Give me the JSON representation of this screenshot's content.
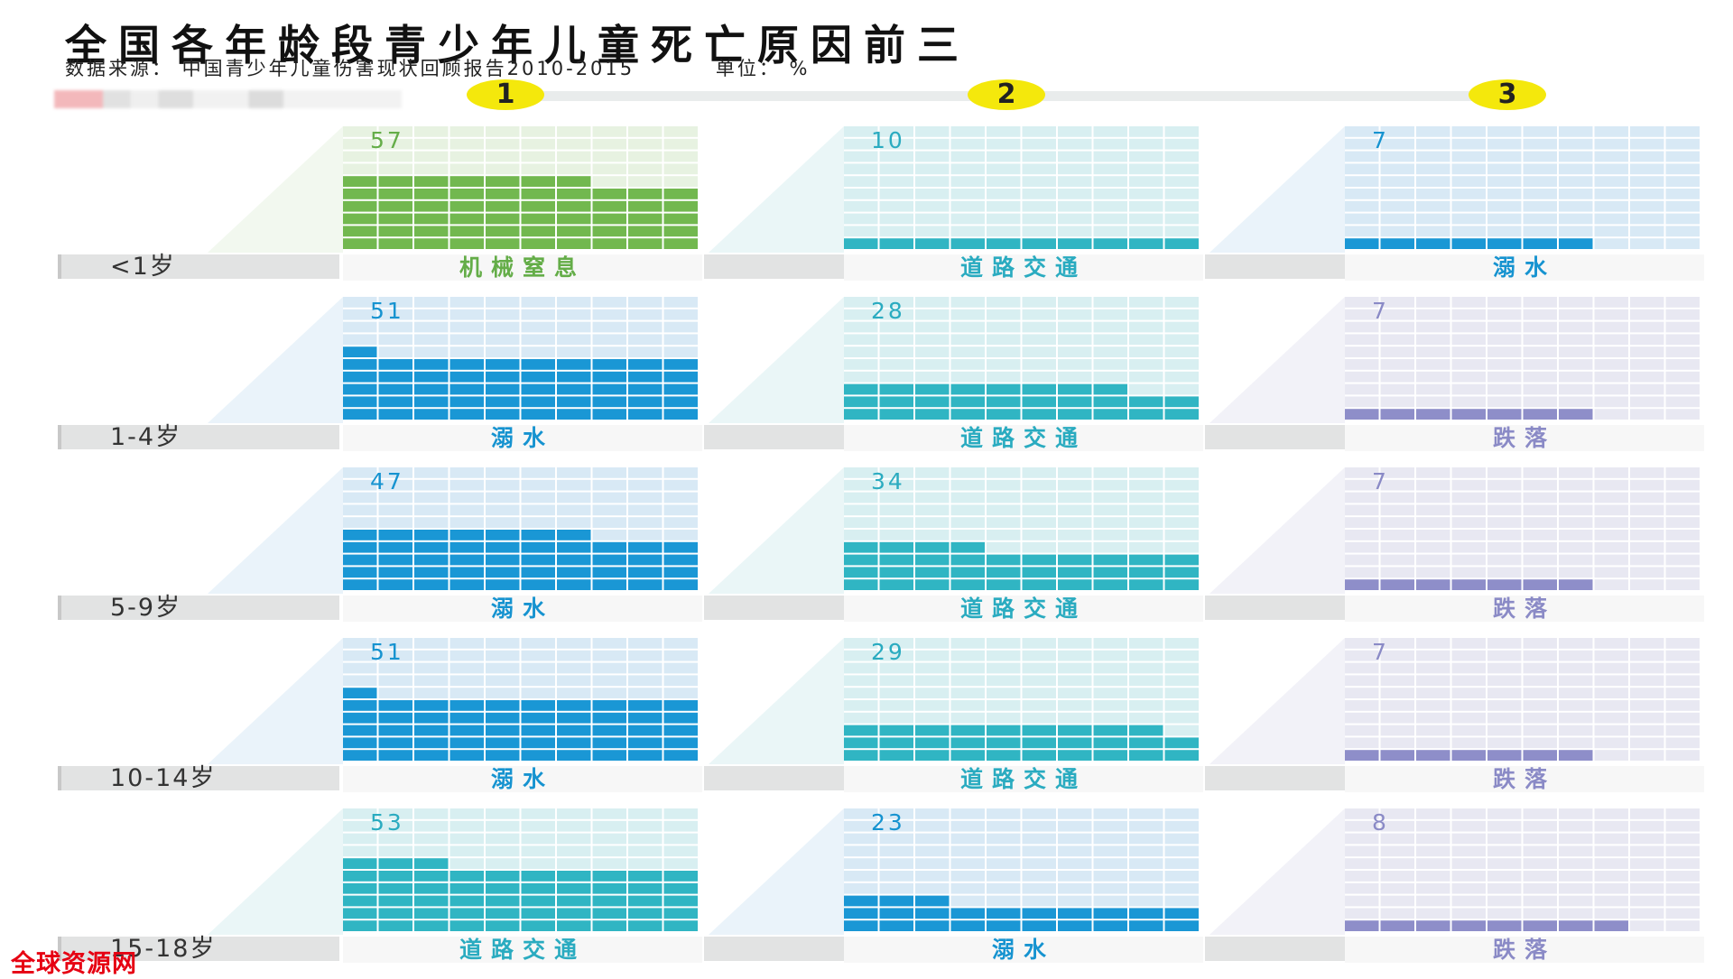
{
  "title": "全国各年龄段青少年儿童死亡原因前三",
  "source": "数据来源： 中国青少年儿童伤害现状回顾报告2010-2015",
  "unit_label": "单位： %",
  "ranks": [
    "1",
    "2",
    "3"
  ],
  "watermark": "全球资源网",
  "colors": {
    "green": "#72b84f",
    "green_text": "#64ad48",
    "blue": "#1a97d5",
    "blue_text": "#1693d0",
    "teal": "#30b5c3",
    "teal_text": "#2aabc0",
    "purple": "#8e8ec9",
    "purple_text": "#8a8ac6",
    "badge": "#f4e80c",
    "title_red": "#e60012"
  },
  "chart_data": {
    "type": "waffle",
    "unit": "%",
    "ranks": [
      1,
      2,
      3
    ],
    "age_groups": [
      {
        "age": "<1岁",
        "causes": [
          {
            "rank": 1,
            "cause": "机械窒息",
            "value": "57",
            "color": "green"
          },
          {
            "rank": 2,
            "cause": "道路交通",
            "value": "10",
            "color": "teal"
          },
          {
            "rank": 3,
            "cause": "溺水",
            "value": "7",
            "color": "blue"
          }
        ]
      },
      {
        "age": "1-4岁",
        "causes": [
          {
            "rank": 1,
            "cause": "溺水",
            "value": "51",
            "color": "blue"
          },
          {
            "rank": 2,
            "cause": "道路交通",
            "value": "28",
            "color": "teal"
          },
          {
            "rank": 3,
            "cause": "跌落",
            "value": "7",
            "color": "purple"
          }
        ]
      },
      {
        "age": "5-9岁",
        "causes": [
          {
            "rank": 1,
            "cause": "溺水",
            "value": "47",
            "color": "blue"
          },
          {
            "rank": 2,
            "cause": "道路交通",
            "value": "34",
            "color": "teal"
          },
          {
            "rank": 3,
            "cause": "跌落",
            "value": "7",
            "color": "purple"
          }
        ]
      },
      {
        "age": "10-14岁",
        "causes": [
          {
            "rank": 1,
            "cause": "溺水",
            "value": "51",
            "color": "blue"
          },
          {
            "rank": 2,
            "cause": "道路交通",
            "value": "29",
            "color": "teal"
          },
          {
            "rank": 3,
            "cause": "跌落",
            "value": "7",
            "color": "purple"
          }
        ]
      },
      {
        "age": "15-18岁",
        "causes": [
          {
            "rank": 1,
            "cause": "道路交通",
            "value": "53",
            "color": "teal"
          },
          {
            "rank": 2,
            "cause": "溺水",
            "value": "23",
            "color": "blue"
          },
          {
            "rank": 3,
            "cause": "跌落",
            "value": "8",
            "color": "purple"
          }
        ]
      }
    ]
  }
}
